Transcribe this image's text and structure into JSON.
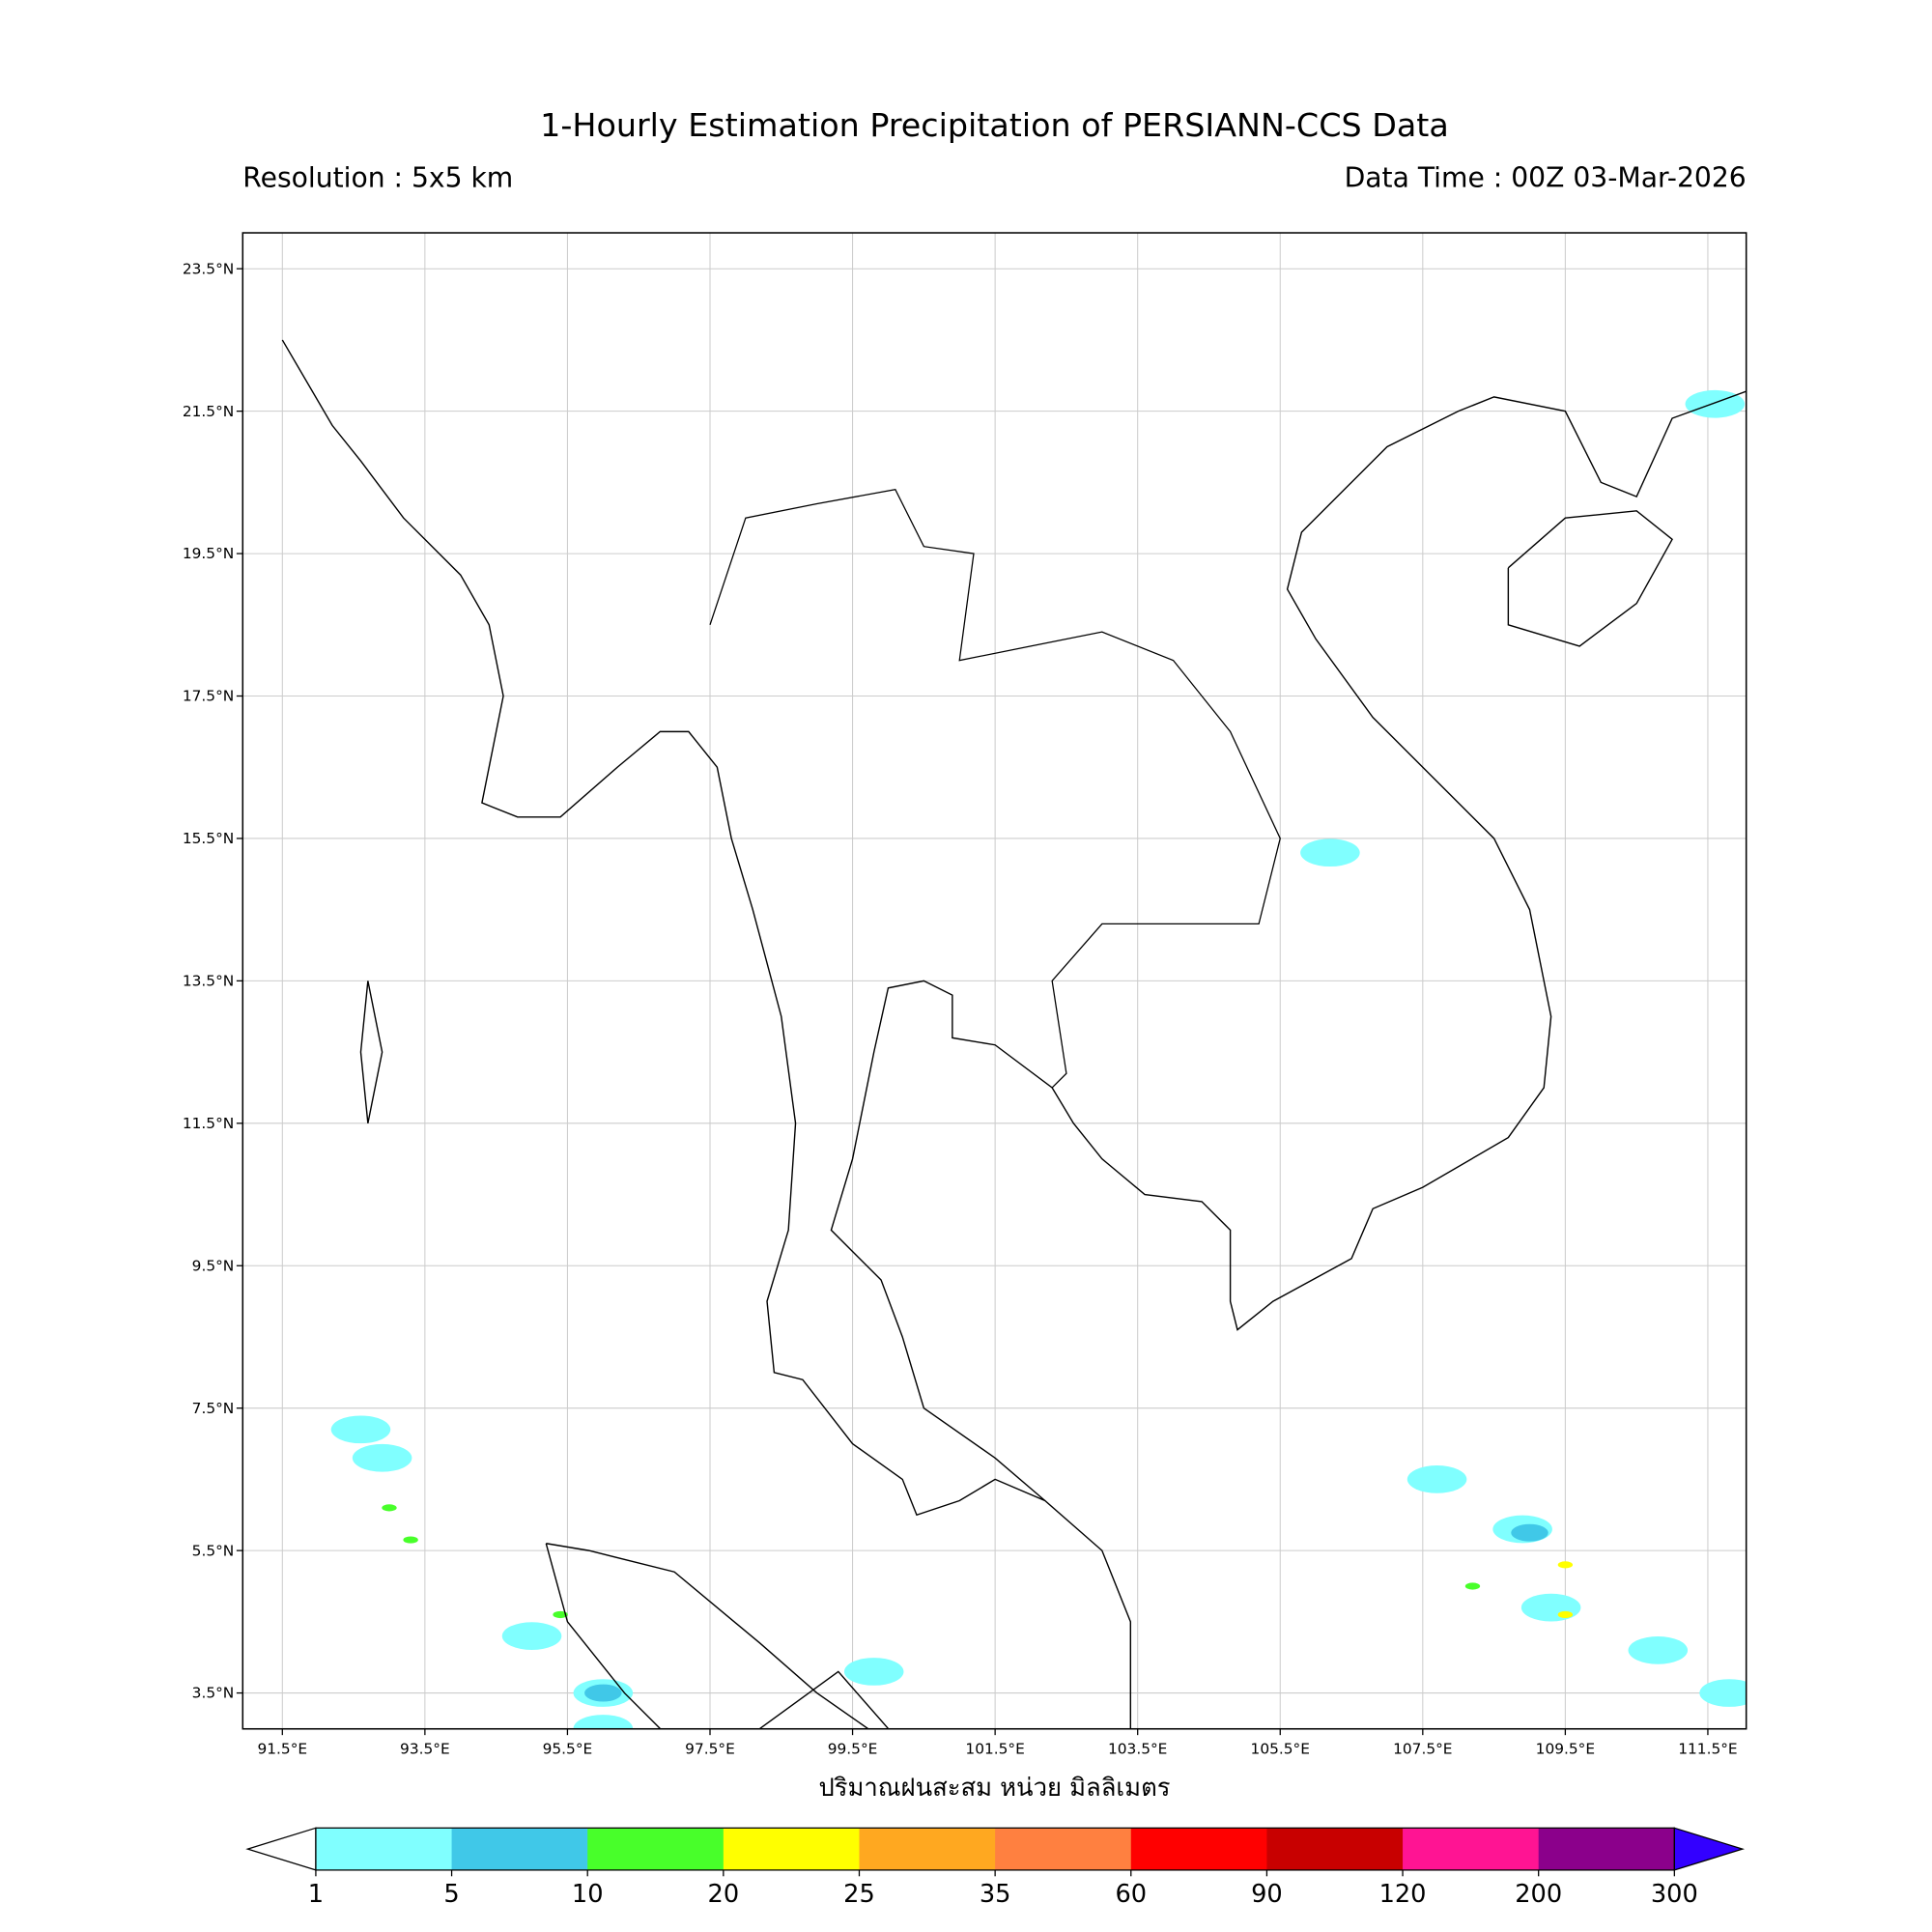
{
  "title": "1-Hourly Estimation Precipitation of PERSIANN-CCS Data",
  "resolution": "Resolution : 5x5 km",
  "data_time": "Data Time : 00Z 03-Mar-2026",
  "colorbar_label": "ปริมาณฝนสะสม หน่วย มิลลิเมตร",
  "lon_ticks": [
    "91.5°E",
    "93.5°E",
    "95.5°E",
    "97.5°E",
    "99.5°E",
    "101.5°E",
    "103.5°E",
    "105.5°E",
    "107.5°E",
    "109.5°E",
    "111.5°E"
  ],
  "lat_ticks": [
    "23.5°N",
    "21.5°N",
    "19.5°N",
    "17.5°N",
    "15.5°N",
    "13.5°N",
    "11.5°N",
    "9.5°N",
    "7.5°N",
    "5.5°N",
    "3.5°N"
  ],
  "extent": {
    "lon": [
      90.95,
      112.05
    ],
    "lat": [
      3.0,
      24.0
    ]
  },
  "colorbar": {
    "levels": [
      "1",
      "5",
      "10",
      "20",
      "25",
      "35",
      "60",
      "90",
      "120",
      "200",
      "300"
    ],
    "colors": [
      "#80ffff",
      "#40c8e8",
      "#48ff2a",
      "#ffff00",
      "#ffa820",
      "#ff8040",
      "#ff0000",
      "#c80000",
      "#ff1493",
      "#8b008b"
    ],
    "under_color": "#ffffff",
    "over_color": "#3300ff"
  },
  "chart_data": {
    "type": "heatmap",
    "rain_cells": [
      {
        "lon": 92.9,
        "lat": 6.8,
        "mm": 3
      },
      {
        "lon": 93.0,
        "lat": 6.1,
        "mm": 12
      },
      {
        "lon": 93.3,
        "lat": 5.65,
        "mm": 12
      },
      {
        "lon": 92.6,
        "lat": 7.2,
        "mm": 2
      },
      {
        "lon": 95.0,
        "lat": 4.3,
        "mm": 3
      },
      {
        "lon": 95.4,
        "lat": 4.6,
        "mm": 12
      },
      {
        "lon": 96.0,
        "lat": 3.5,
        "mm": 3
      },
      {
        "lon": 96.0,
        "lat": 3.5,
        "mm": 7
      },
      {
        "lon": 96.0,
        "lat": 3.0,
        "mm": 3
      },
      {
        "lon": 99.8,
        "lat": 3.8,
        "mm": 2
      },
      {
        "lon": 108.9,
        "lat": 5.8,
        "mm": 3
      },
      {
        "lon": 109.0,
        "lat": 5.75,
        "mm": 7
      },
      {
        "lon": 109.5,
        "lat": 5.3,
        "mm": 22
      },
      {
        "lon": 109.3,
        "lat": 4.7,
        "mm": 3
      },
      {
        "lon": 109.5,
        "lat": 4.6,
        "mm": 22
      },
      {
        "lon": 110.8,
        "lat": 4.1,
        "mm": 3
      },
      {
        "lon": 111.8,
        "lat": 3.5,
        "mm": 3
      },
      {
        "lon": 108.2,
        "lat": 5.0,
        "mm": 12
      },
      {
        "lon": 111.6,
        "lat": 21.6,
        "mm": 3
      },
      {
        "lon": 106.2,
        "lat": 15.3,
        "mm": 2
      },
      {
        "lon": 107.7,
        "lat": 6.5,
        "mm": 2
      }
    ]
  }
}
